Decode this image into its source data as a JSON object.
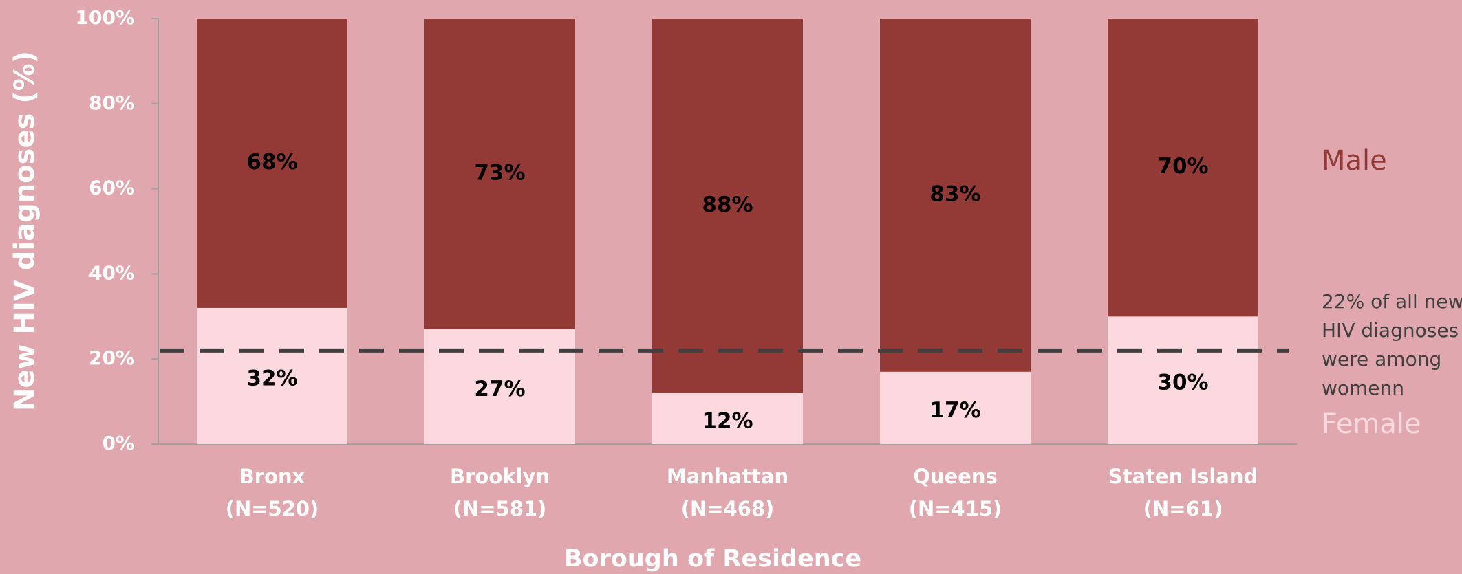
{
  "chart_data": {
    "type": "stacked_bar",
    "y_axis_label": "New HIV diagnoses (%)",
    "x_axis_label": "Borough of Residence",
    "categories": [
      [
        "Bronx",
        "(N=520)"
      ],
      [
        "Brooklyn",
        "(N=581)"
      ],
      [
        "Manhattan",
        "(N=468)"
      ],
      [
        "Queens",
        "(N=415)"
      ],
      [
        "Staten Island",
        "(N=61)"
      ]
    ],
    "series": [
      {
        "name": "Female",
        "color": "#fcd9de",
        "values": [
          32,
          27,
          12,
          17,
          30
        ],
        "value_labels": [
          "32%",
          "27%",
          "12%",
          "17%",
          "30%"
        ]
      },
      {
        "name": "Male",
        "color": "#943a36",
        "values": [
          68,
          73,
          88,
          83,
          70
        ],
        "value_labels": [
          "68%",
          "73%",
          "88%",
          "83%",
          "70%"
        ]
      }
    ],
    "ylim": [
      0,
      100
    ],
    "yticks": [
      {
        "value": 0,
        "label": "0%"
      },
      {
        "value": 20,
        "label": "20%"
      },
      {
        "value": 40,
        "label": "40%"
      },
      {
        "value": 60,
        "label": "60%"
      },
      {
        "value": 80,
        "label": "80%"
      },
      {
        "value": 100,
        "label": "100%"
      }
    ],
    "reference_line": {
      "value": 22,
      "color": "#404040",
      "annotation": [
        "22% of all new",
        "HIV diagnoses",
        "were among",
        "womenn"
      ]
    }
  }
}
